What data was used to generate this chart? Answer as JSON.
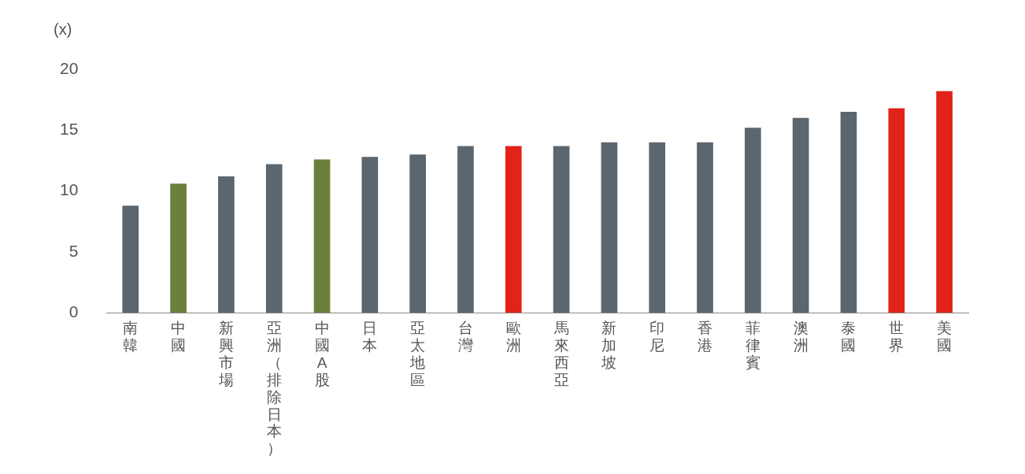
{
  "chart_data": {
    "type": "bar",
    "ylabel": "(x)",
    "categories": [
      "南韓",
      "中國",
      "新興市場",
      "亞洲（排除日本）",
      "中國A股",
      "日本",
      "亞太地區",
      "台灣",
      "歐洲",
      "馬來西亞",
      "新加坡",
      "印尼",
      "香港",
      "菲律賓",
      "澳洲",
      "泰國",
      "世界",
      "美國"
    ],
    "values": [
      8.8,
      10.6,
      11.2,
      12.2,
      12.6,
      12.8,
      13.0,
      13.7,
      13.7,
      13.7,
      14.0,
      14.0,
      14.0,
      15.2,
      16.0,
      16.5,
      16.8,
      18.2
    ],
    "colors": [
      "#5a6670",
      "#6a7f3a",
      "#5a6670",
      "#5a6670",
      "#6a7f3a",
      "#5a6670",
      "#5a6670",
      "#5a6670",
      "#e2231a",
      "#5a6670",
      "#5a6670",
      "#5a6670",
      "#5a6670",
      "#5a6670",
      "#5a6670",
      "#5a6670",
      "#e2231a",
      "#e2231a"
    ],
    "ylim": [
      0,
      20
    ],
    "yticks": [
      0,
      5,
      10,
      15,
      20
    ],
    "grid": false,
    "legend": false
  }
}
